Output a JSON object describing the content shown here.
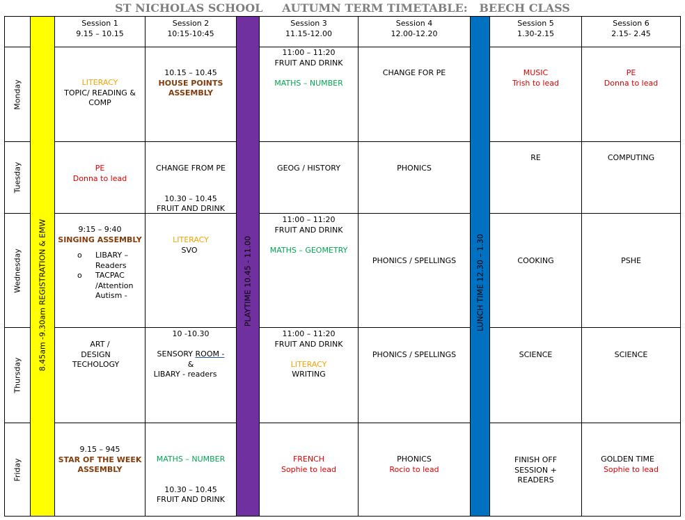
{
  "title": "ST NICHOLAS SCHOOL     AUTUMN TERM TIMETABLE:   BEECH CLASS",
  "sessions": [
    {
      "name": "Session 1",
      "time": "9.15 – 10.15"
    },
    {
      "name": "Session 2",
      "time": "10:15-10:45"
    },
    {
      "name": "Session 3",
      "time": "11.15-12.00"
    },
    {
      "name": "Session 4",
      "time": "12.00-12.20"
    },
    {
      "name": "Session 5",
      "time": "1.30-2.15"
    },
    {
      "name": "Session 6",
      "time": "2.15- 2.45"
    }
  ],
  "bands": {
    "registration": "8.45am -9.30am REGISTRATION & EMW",
    "playtime": "PLAYTIME 10.45 - 11.00",
    "lunch": "LUNCH TIME      12.30 – 1.30"
  },
  "days": [
    "Monday",
    "Tuesday",
    "Wednesday",
    "Thursday",
    "Friday"
  ],
  "cells": {
    "mon": {
      "s1": [
        "LITERACY",
        "TOPIC/ READING &",
        "COMP"
      ],
      "s2": [
        "10.15 – 10.45",
        "HOUSE POINTS",
        "ASSEMBLY"
      ],
      "s3": [
        "11:00 – 11:20",
        "FRUIT AND DRINK",
        "MATHS – NUMBER"
      ],
      "s4": [
        "CHANGE FOR PE"
      ],
      "s5": [
        "MUSIC",
        "Trish to lead"
      ],
      "s6": [
        "PE",
        "Donna to lead"
      ]
    },
    "tue": {
      "s1": [
        "PE",
        "Donna to lead"
      ],
      "s2": [
        "CHANGE FROM PE",
        "10.30 – 10.45",
        "FRUIT AND DRINK"
      ],
      "s3": [
        "GEOG / HISTORY"
      ],
      "s4": [
        "PHONICS"
      ],
      "s5": [
        "RE"
      ],
      "s6": [
        "COMPUTING"
      ]
    },
    "wed": {
      "s1": [
        "9:15 – 9:40",
        "SINGING ASSEMBLY",
        "LIBARY –",
        "Readers",
        "TACPAC",
        "/Attention",
        "Autism -"
      ],
      "s2": [
        "LITERACY",
        "SVO"
      ],
      "s3": [
        "11:00 – 11:20",
        "FRUIT AND DRINK",
        "MATHS – GEOMETRY"
      ],
      "s4": [
        "PHONICS / SPELLINGS"
      ],
      "s5": [
        "COOKING"
      ],
      "s6": [
        "PSHE"
      ]
    },
    "thu": {
      "s1": [
        "ART /",
        "DESIGN",
        "TECHOLOGY"
      ],
      "s2": [
        "10 -10.30",
        "SENSORY",
        "ROOM  -",
        "&",
        "LIBARY - readers"
      ],
      "s3": [
        "11:00 – 11:20",
        "FRUIT AND DRINK",
        "LITERACY",
        "WRITING"
      ],
      "s4": [
        "PHONICS / SPELLINGS"
      ],
      "s5": [
        "SCIENCE"
      ],
      "s6": [
        "SCIENCE"
      ]
    },
    "fri": {
      "s1": [
        "9.15 – 945",
        "STAR OF THE WEEK",
        "ASSEMBLY"
      ],
      "s2": [
        "MATHS – NUMBER",
        "10.30 – 10.45",
        "FRUIT AND DRINK"
      ],
      "s3": [
        "FRENCH",
        "Sophie to lead"
      ],
      "s4": [
        "PHONICS",
        "Rocio to lead"
      ],
      "s5": [
        "FINISH OFF",
        "SESSION +",
        "READERS"
      ],
      "s6": [
        "GOLDEN TIME",
        "Sophie to lead"
      ]
    }
  },
  "colors": {
    "registration_band": "#ffff00",
    "playtime_band": "#7030a0",
    "lunch_band": "#0070c0",
    "literacy": "#f5a300",
    "maths": "#00a651",
    "specialist": "#e00000",
    "assembly": "#833c0b"
  }
}
